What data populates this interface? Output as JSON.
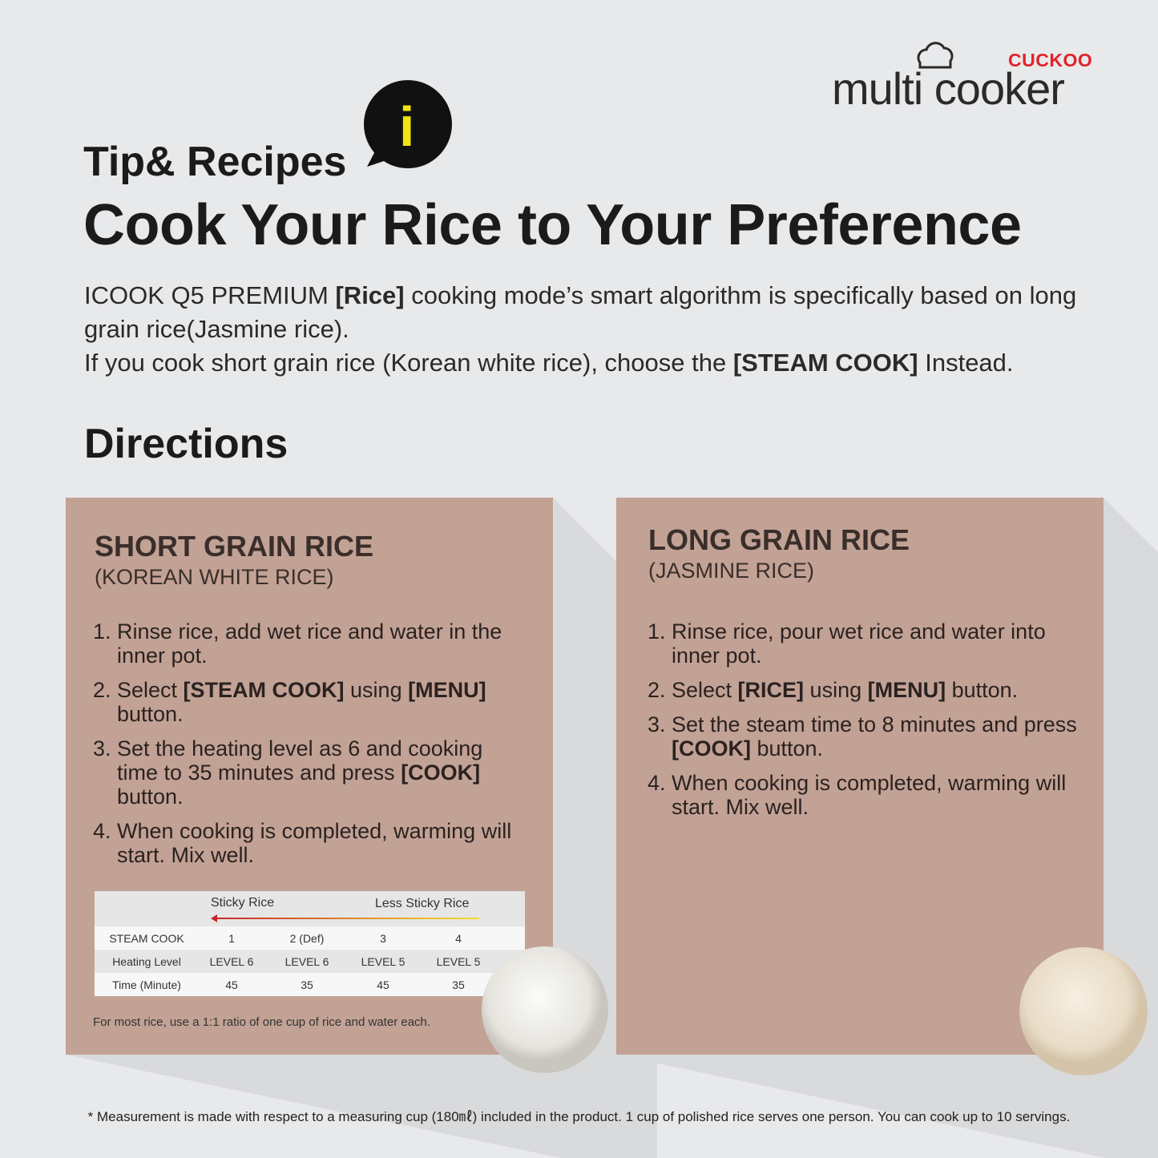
{
  "brand": {
    "maker": "CUCKOO",
    "product": "multi cooker"
  },
  "header": {
    "kicker": "Tip& Recipes",
    "icon": "i",
    "title": "Cook Your Rice to Your Preference"
  },
  "intro": [
    [
      {
        "text": "ICOOK Q5 PREMIUM "
      },
      {
        "text": "[Rice]",
        "bold": true
      },
      {
        "text": " cooking mode’s smart algorithm is specifically based on long grain rice(Jasmine rice)."
      }
    ],
    [
      {
        "text": "If you cook short grain rice (Korean white rice), choose the "
      },
      {
        "text": "[STEAM COOK]",
        "bold": true
      },
      {
        "text": " Instead."
      }
    ]
  ],
  "directions_heading": "Directions",
  "cards": [
    {
      "title": "SHORT GRAIN RICE",
      "subtitle": "(KOREAN WHITE RICE)",
      "steps": [
        {
          "number": "1.",
          "runs": [
            {
              "text": "Rinse rice, add wet rice and water in the inner pot."
            }
          ]
        },
        {
          "number": "2.",
          "runs": [
            {
              "text": "Select "
            },
            {
              "text": "[STEAM COOK]",
              "bold": true
            },
            {
              "text": " using "
            },
            {
              "text": "[MENU]",
              "bold": true
            },
            {
              "text": " button."
            }
          ]
        },
        {
          "number": "3.",
          "runs": [
            {
              "text": "Set the heating level as 6 and cooking time to 35 minutes and press "
            },
            {
              "text": "[COOK]",
              "bold": true
            },
            {
              "text": " button."
            }
          ]
        },
        {
          "number": "4.",
          "runs": [
            {
              "text": "When cooking is completed, warming will start. Mix well."
            }
          ]
        }
      ],
      "table": {
        "scale": [
          "Sticky Rice",
          "Less Sticky Rice"
        ],
        "rows": [
          [
            "STEAM COOK",
            "1",
            "2 (Def)",
            "3",
            "4"
          ],
          [
            "Heating Level",
            "LEVEL 6",
            "LEVEL 6",
            "LEVEL 5",
            "LEVEL 5"
          ],
          [
            "Time (Minute)",
            "45",
            "35",
            "45",
            "35"
          ]
        ]
      },
      "note": "For most rice, use a 1:1 ratio of one cup of rice and water each."
    },
    {
      "title": "LONG GRAIN RICE",
      "subtitle": "(JASMINE RICE)",
      "steps": [
        {
          "number": "1.",
          "runs": [
            {
              "text": "Rinse rice, pour wet rice and water into inner pot."
            }
          ]
        },
        {
          "number": "2.",
          "runs": [
            {
              "text": "Select "
            },
            {
              "text": "[RICE]",
              "bold": true
            },
            {
              "text": " using "
            },
            {
              "text": "[MENU]",
              "bold": true
            },
            {
              "text": " button."
            }
          ]
        },
        {
          "number": "3.",
          "runs": [
            {
              "text": "Set the steam time to 8 minutes and press "
            },
            {
              "text": "[COOK]",
              "bold": true
            },
            {
              "text": " button."
            }
          ]
        },
        {
          "number": "4.",
          "runs": [
            {
              "text": "When cooking is completed, warming will start. Mix well."
            }
          ]
        }
      ]
    }
  ],
  "footnote": "* Measurement is made with respect to a measuring cup (180㎖) included in the product. 1 cup of polished rice serves one person. You can cook up to 10 servings."
}
